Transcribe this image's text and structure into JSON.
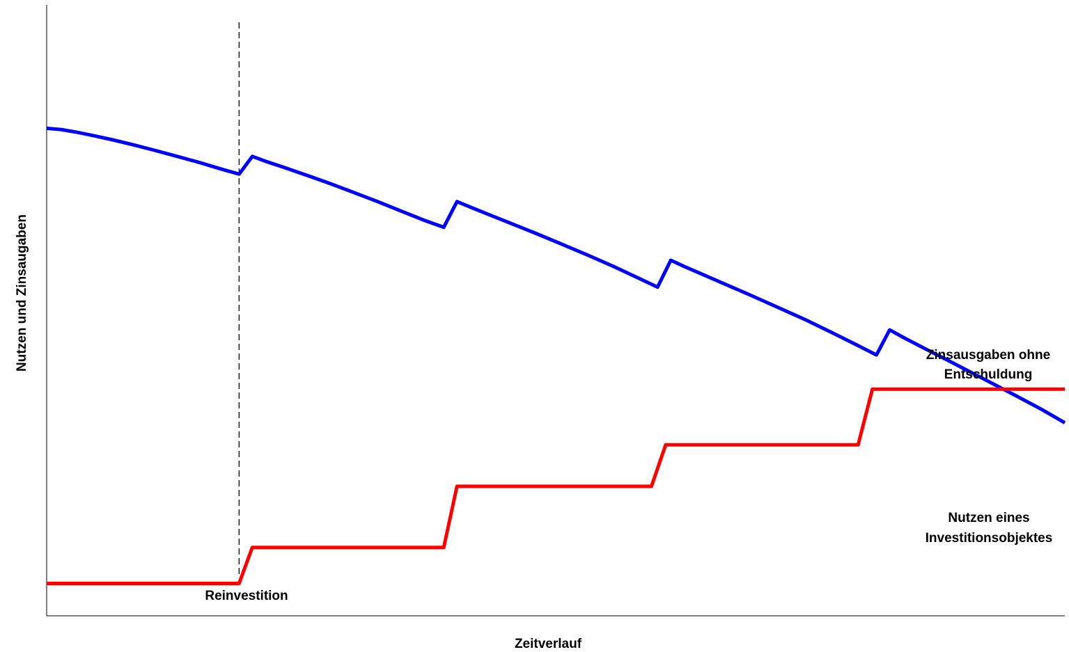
{
  "chart_data": {
    "type": "line",
    "title": "",
    "xlabel": "Zeitverlauf",
    "ylabel": "Nutzen und Zinsaugaben",
    "xlim": [
      0,
      100
    ],
    "ylim": [
      0,
      100
    ],
    "grid": false,
    "ticks_shown": false,
    "series": [
      {
        "key": "blue",
        "color": "#0000ff",
        "x": [
          0,
          1.4,
          2.8,
          4.6,
          6.5,
          8.5,
          10.6,
          12.8,
          15,
          17,
          18.9,
          20.2,
          21.5,
          23.3,
          25.4,
          27.6,
          30,
          32.5,
          34.9,
          37,
          39,
          40.3,
          41.6,
          43.4,
          45.5,
          47.9,
          50.5,
          53.2,
          55.8,
          58.1,
          60,
          61.3,
          62.6,
          64.4,
          66.6,
          69.1,
          71.8,
          74.6,
          77.2,
          79.5,
          81.5,
          82.8,
          84.1,
          86.3,
          89,
          92,
          95,
          97.7,
          100
        ],
        "values": [
          79.8,
          79.6,
          79.2,
          78.6,
          77.9,
          77.1,
          76.2,
          75.2,
          74.2,
          73.2,
          72.3,
          75.2,
          74.4,
          73.4,
          72.2,
          70.9,
          69.4,
          67.8,
          66.2,
          64.8,
          63.6,
          67.8,
          66.9,
          65.7,
          64.3,
          62.7,
          60.9,
          59,
          57.1,
          55.3,
          53.8,
          58.2,
          57.2,
          55.9,
          54.3,
          52.5,
          50.5,
          48.4,
          46.3,
          44.4,
          42.7,
          46.8,
          45.6,
          43.7,
          41.4,
          38.8,
          36.2,
          33.8,
          31.6
        ]
      },
      {
        "key": "red",
        "color": "#ff0000",
        "x": [
          0,
          18.9,
          20.2,
          39,
          40.3,
          59.4,
          60.8,
          79.7,
          81.1,
          100
        ],
        "values": [
          5.3,
          5.3,
          11.2,
          11.2,
          21.2,
          21.2,
          28,
          28,
          37.1,
          37.1
        ]
      }
    ],
    "reference_line": {
      "x": 18.9,
      "style": "dashed"
    },
    "annotations": {
      "zins_line1": "Zinsausgaben ohne",
      "zins_line2": "Entschuldung",
      "nutzen_line1": "Nutzen eines",
      "nutzen_line2": "Investitionsobjektes",
      "reinvest": "Reinvestition"
    }
  }
}
